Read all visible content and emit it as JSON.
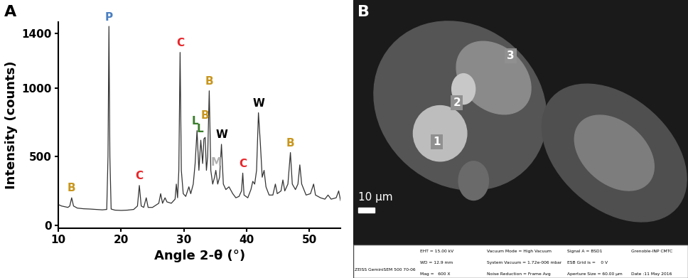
{
  "chart_data": {
    "type": "line",
    "title": "A",
    "x_label": "Angle 2-θ (°)",
    "y_label": "Intensity (counts)",
    "xlim": [
      10,
      55
    ],
    "xticks": [
      10,
      20,
      30,
      40,
      50
    ],
    "ylim": [
      -20,
      1480
    ],
    "yticks": [
      0,
      500,
      1000,
      1400
    ],
    "grid": false,
    "color": "#333333",
    "x": [
      10.0,
      10.5,
      11.0,
      11.5,
      11.8,
      12.1,
      12.4,
      13.0,
      14.0,
      15.0,
      16.0,
      17.0,
      17.7,
      17.9,
      18.05,
      18.2,
      18.4,
      19.0,
      20.0,
      21.0,
      22.0,
      22.6,
      22.9,
      23.2,
      23.6,
      24.0,
      24.3,
      25.0,
      26.0,
      26.3,
      26.6,
      27.0,
      27.3,
      28.0,
      28.6,
      28.8,
      29.0,
      29.2,
      29.4,
      29.6,
      29.9,
      30.3,
      30.8,
      31.1,
      31.5,
      31.8,
      32.1,
      32.4,
      32.7,
      33.0,
      33.2,
      33.4,
      33.6,
      33.8,
      34.05,
      34.3,
      34.6,
      34.9,
      35.1,
      35.4,
      35.7,
      36.0,
      36.3,
      36.7,
      37.2,
      37.8,
      38.3,
      38.8,
      39.2,
      39.4,
      39.6,
      40.2,
      40.7,
      41.0,
      41.3,
      41.6,
      41.9,
      42.2,
      42.5,
      42.8,
      43.1,
      43.6,
      44.2,
      44.6,
      44.9,
      45.5,
      45.8,
      46.1,
      46.6,
      47.0,
      47.3,
      47.8,
      48.2,
      48.5,
      48.8,
      49.5,
      50.2,
      50.7,
      51.0,
      51.8,
      52.5,
      53.0,
      53.5,
      54.3,
      54.7,
      55.0
    ],
    "values": [
      150,
      140,
      135,
      130,
      140,
      200,
      140,
      125,
      120,
      118,
      115,
      112,
      115,
      500,
      1450,
      500,
      118,
      110,
      108,
      110,
      115,
      140,
      290,
      140,
      130,
      200,
      130,
      130,
      160,
      230,
      160,
      200,
      170,
      160,
      190,
      300,
      200,
      400,
      1260,
      400,
      230,
      210,
      280,
      230,
      300,
      450,
      690,
      400,
      620,
      450,
      630,
      640,
      400,
      500,
      980,
      400,
      300,
      350,
      400,
      300,
      350,
      590,
      300,
      260,
      280,
      230,
      200,
      210,
      250,
      380,
      220,
      200,
      260,
      320,
      300,
      400,
      820,
      600,
      350,
      400,
      280,
      220,
      220,
      300,
      230,
      250,
      330,
      250,
      300,
      530,
      300,
      260,
      300,
      440,
      300,
      220,
      230,
      300,
      220,
      200,
      190,
      220,
      190,
      200,
      250,
      180
    ],
    "annotations": [
      {
        "text": "B",
        "x": 12.1,
        "y": 230,
        "color": "#c8961e"
      },
      {
        "text": "P",
        "x": 18.05,
        "y": 1475,
        "color": "#4a7fc1"
      },
      {
        "text": "C",
        "x": 22.9,
        "y": 320,
        "color": "#e8262a"
      },
      {
        "text": "C",
        "x": 29.4,
        "y": 1290,
        "color": "#e8262a"
      },
      {
        "text": "L",
        "x": 31.8,
        "y": 720,
        "color": "#3a7d2a"
      },
      {
        "text": "L",
        "x": 32.6,
        "y": 660,
        "color": "#3a7d2a"
      },
      {
        "text": "B",
        "x": 33.4,
        "y": 760,
        "color": "#c8961e"
      },
      {
        "text": "B",
        "x": 34.05,
        "y": 1010,
        "color": "#c8961e"
      },
      {
        "text": "M",
        "x": 35.2,
        "y": 420,
        "color": "#b0b0b0"
      },
      {
        "text": "W",
        "x": 36.0,
        "y": 620,
        "color": "#000000"
      },
      {
        "text": "C",
        "x": 39.4,
        "y": 410,
        "color": "#e8262a"
      },
      {
        "text": "W",
        "x": 41.9,
        "y": 850,
        "color": "#000000"
      },
      {
        "text": "B",
        "x": 47.0,
        "y": 560,
        "color": "#c8961e"
      }
    ]
  },
  "panel_b": {
    "title": "B",
    "regions": [
      "1",
      "2",
      "3"
    ],
    "scale_bar": "10 µm",
    "info_bar": [
      [
        "ZEISS GeminiSEM 500 70-06"
      ],
      [
        "EHT = 15.00 kV",
        "WD = 12.9 mm",
        "Mag =   600 X"
      ],
      [
        "Vacuum Mode = High Vacuum",
        "System Vacuum = 1.72e-006 mbar",
        "Noise Reduction = Frame Avg"
      ],
      [
        "Signal A = BSD1",
        "ESB Grid is =    0 V",
        "Aperture Size = 60.00 µm"
      ],
      [
        "Grenoble-INP CMTC",
        "Date :11 May 2016"
      ]
    ]
  }
}
